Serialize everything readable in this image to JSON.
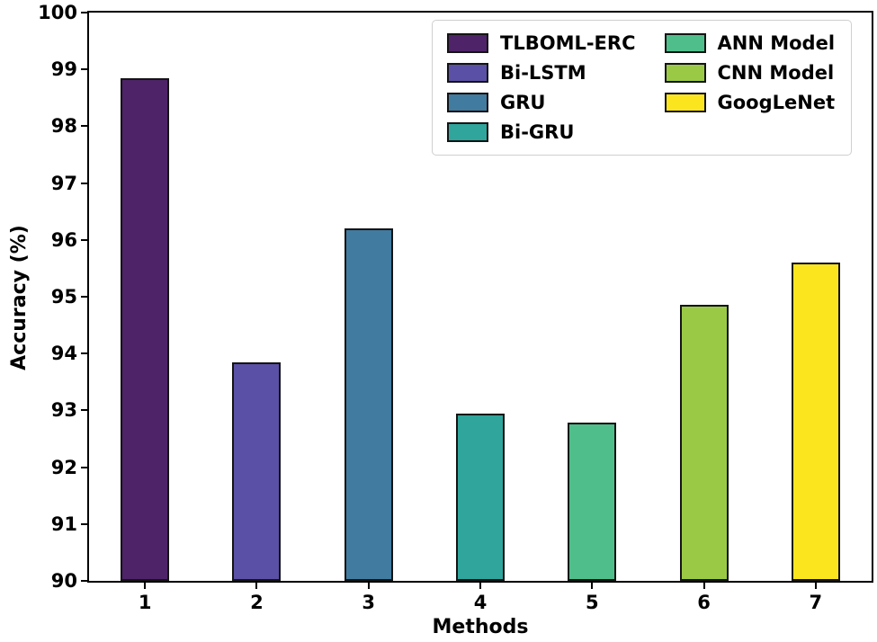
{
  "figure": {
    "background": "#ffffff",
    "spine_color": "#000000",
    "bar_edge_color": "#141414"
  },
  "chart_data": {
    "type": "bar",
    "title": "",
    "xlabel": "Methods",
    "ylabel": "Accuracy (%)",
    "categories": [
      "1",
      "2",
      "3",
      "4",
      "5",
      "6",
      "7"
    ],
    "values": [
      98.85,
      93.85,
      96.2,
      92.95,
      92.78,
      94.85,
      95.6
    ],
    "bar_method_names": [
      "TLBOML-ERC",
      "Bi-LSTM",
      "GRU",
      "Bi-GRU",
      "ANN Model",
      "CNN Model",
      "GoogLeNet"
    ],
    "colors": [
      "#4e2368",
      "#5a50a5",
      "#417ba0",
      "#2fa59c",
      "#4fbe8b",
      "#9aca45",
      "#fbe51f"
    ],
    "ylim": [
      90,
      100
    ],
    "yticks": [
      90,
      91,
      92,
      93,
      94,
      95,
      96,
      97,
      98,
      99,
      100
    ],
    "grid": false,
    "legend_position": "upper right",
    "legend": [
      {
        "label": "TLBOML-ERC",
        "color": "#4e2368"
      },
      {
        "label": "Bi-LSTM",
        "color": "#5a50a5"
      },
      {
        "label": "GRU",
        "color": "#417ba0"
      },
      {
        "label": "Bi-GRU",
        "color": "#2fa59c"
      },
      {
        "label": "ANN Model",
        "color": "#4fbe8b"
      },
      {
        "label": "CNN Model",
        "color": "#9aca45"
      },
      {
        "label": "GoogLeNet",
        "color": "#fbe51f"
      }
    ],
    "legend_columns": [
      4,
      3
    ]
  }
}
